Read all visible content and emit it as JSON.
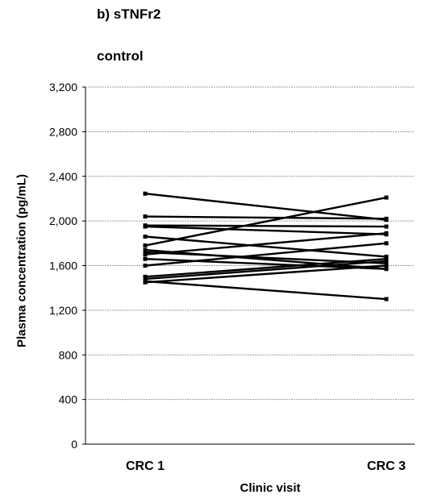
{
  "panel_label": "b) sTNFr2",
  "group_label": "control",
  "chart_data": {
    "type": "line",
    "title": "",
    "xlabel": "Clinic visit",
    "ylabel": "Plasma concentration (pg/mL)",
    "categories": [
      "CRC 1",
      "CRC 3"
    ],
    "ylim": [
      0,
      3200
    ],
    "yticks": [
      0,
      400,
      800,
      1200,
      1600,
      2000,
      2400,
      2800,
      3200
    ],
    "ytick_labels": [
      "0",
      "400",
      "800",
      "1,200",
      "1,600",
      "2,000",
      "2,400",
      "2,800",
      "3,200"
    ],
    "grid": true,
    "legend": "none",
    "series": [
      {
        "values": [
          2245,
          2010
        ]
      },
      {
        "values": [
          2040,
          2020
        ]
      },
      {
        "values": [
          1960,
          1950
        ]
      },
      {
        "values": [
          1950,
          1880
        ]
      },
      {
        "values": [
          1860,
          1680
        ]
      },
      {
        "values": [
          1780,
          2210
        ]
      },
      {
        "values": [
          1740,
          1570
        ]
      },
      {
        "values": [
          1720,
          1620
        ]
      },
      {
        "values": [
          1700,
          1890
        ]
      },
      {
        "values": [
          1660,
          1570
        ]
      },
      {
        "values": [
          1600,
          1800
        ]
      },
      {
        "values": [
          1500,
          1660
        ]
      },
      {
        "values": [
          1480,
          1640
        ]
      },
      {
        "values": [
          1460,
          1300
        ]
      },
      {
        "values": [
          1450,
          1600
        ]
      }
    ],
    "colors": {
      "line": "#000000",
      "grid": "#9a9a9a",
      "axis": "#000000"
    }
  }
}
